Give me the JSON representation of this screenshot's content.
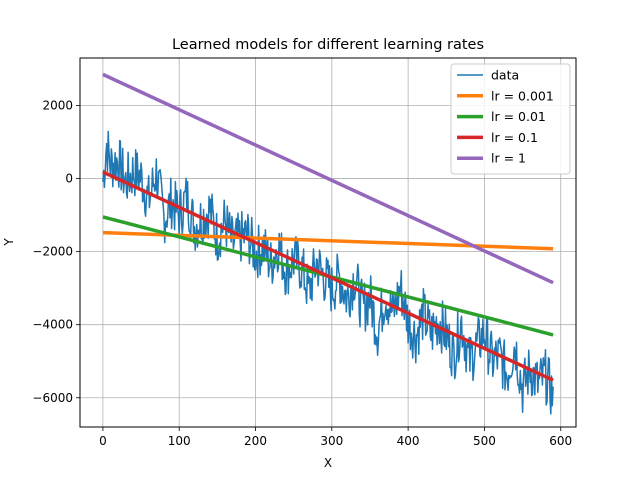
{
  "chart_data": {
    "type": "line",
    "title": "Learned models for different learning rates",
    "xlabel": "X",
    "ylabel": "Y",
    "xlim": [
      -30,
      620
    ],
    "ylim": [
      -6800,
      3300
    ],
    "xticks": [
      0,
      100,
      200,
      300,
      400,
      500,
      600
    ],
    "yticks": [
      -6000,
      -4000,
      -2000,
      0,
      2000
    ],
    "grid": true,
    "legend_position": "top-right",
    "data_series": {
      "name": "data",
      "color": "#1f77b4",
      "x_range": [
        0,
        590
      ],
      "noisy": true,
      "trend": {
        "start": 200,
        "end": -5500
      },
      "approx_points": [
        [
          0,
          -300
        ],
        [
          5,
          1600
        ],
        [
          10,
          600
        ],
        [
          20,
          900
        ],
        [
          30,
          -100
        ],
        [
          40,
          500
        ],
        [
          50,
          300
        ],
        [
          60,
          -800
        ],
        [
          70,
          700
        ],
        [
          80,
          -1500
        ],
        [
          90,
          -600
        ],
        [
          100,
          -1200
        ],
        [
          110,
          -200
        ],
        [
          120,
          -1600
        ],
        [
          130,
          -1100
        ],
        [
          140,
          -600
        ],
        [
          150,
          -1900
        ],
        [
          160,
          -1000
        ],
        [
          170,
          -2100
        ],
        [
          180,
          -1700
        ],
        [
          190,
          -1500
        ],
        [
          200,
          -2300
        ],
        [
          210,
          -1900
        ],
        [
          220,
          -2700
        ],
        [
          230,
          -1600
        ],
        [
          240,
          -2900
        ],
        [
          250,
          -2200
        ],
        [
          260,
          -2500
        ],
        [
          270,
          -3700
        ],
        [
          280,
          -2100
        ],
        [
          290,
          -2800
        ],
        [
          300,
          -3300
        ],
        [
          310,
          -2600
        ],
        [
          320,
          -3600
        ],
        [
          330,
          -2400
        ],
        [
          340,
          -4000
        ],
        [
          350,
          -3300
        ],
        [
          360,
          -4900
        ],
        [
          370,
          -3000
        ],
        [
          380,
          -3900
        ],
        [
          390,
          -2500
        ],
        [
          400,
          -4100
        ],
        [
          410,
          -4800
        ],
        [
          420,
          -3600
        ],
        [
          430,
          -4500
        ],
        [
          440,
          -3700
        ],
        [
          450,
          -4400
        ],
        [
          460,
          -5300
        ],
        [
          470,
          -3600
        ],
        [
          480,
          -5500
        ],
        [
          490,
          -4600
        ],
        [
          500,
          -3900
        ],
        [
          510,
          -5200
        ],
        [
          520,
          -4900
        ],
        [
          530,
          -5700
        ],
        [
          540,
          -4100
        ],
        [
          550,
          -6300
        ],
        [
          560,
          -5200
        ],
        [
          570,
          -5900
        ],
        [
          580,
          -5400
        ],
        [
          590,
          -6300
        ]
      ]
    },
    "series": [
      {
        "name": "lr = 0.001",
        "color": "#ff7f0e",
        "x": [
          0,
          590
        ],
        "y": [
          -1480,
          -1920
        ]
      },
      {
        "name": "lr = 0.01",
        "color": "#2ca02c",
        "x": [
          0,
          590
        ],
        "y": [
          -1050,
          -4280
        ]
      },
      {
        "name": "lr = 0.1",
        "color": "#d62728",
        "x": [
          0,
          590
        ],
        "y": [
          180,
          -5520
        ]
      },
      {
        "name": "lr = 1",
        "color": "#9467bd",
        "x": [
          0,
          590
        ],
        "y": [
          2850,
          -2850
        ]
      }
    ]
  }
}
